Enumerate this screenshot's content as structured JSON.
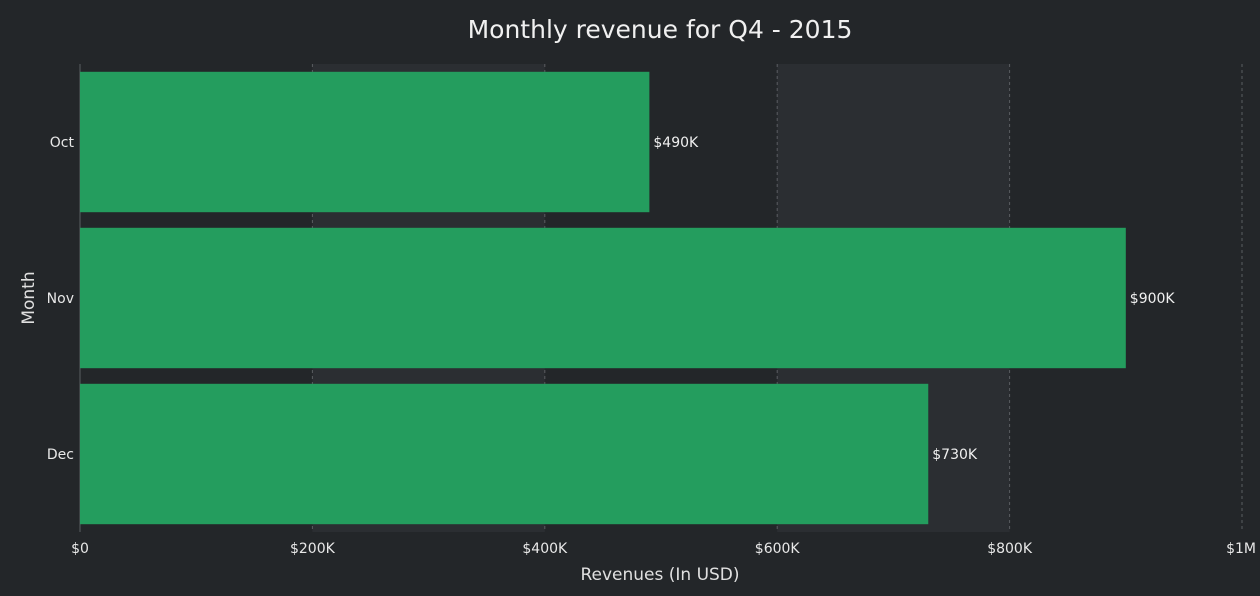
{
  "chart_data": {
    "type": "bar",
    "orientation": "horizontal",
    "title": "Monthly revenue for Q4 - 2015",
    "xlabel": "Revenues (In USD)",
    "ylabel": "Month",
    "categories": [
      "Oct",
      "Nov",
      "Dec"
    ],
    "values": [
      490000,
      900000,
      730000
    ],
    "value_labels": [
      "$490K",
      "$900K",
      "$730K"
    ],
    "xlim": [
      0,
      1000000
    ],
    "x_ticks": [
      0,
      200000,
      400000,
      600000,
      800000,
      1000000
    ],
    "x_tick_labels": [
      "$0",
      "$200K",
      "$400K",
      "$600K",
      "$800K",
      "$1M"
    ],
    "grid": true,
    "bar_color": "#249d5e",
    "background_color": "#232629",
    "band_color": "#2b2e32",
    "grid_color": "#5a5d61"
  }
}
